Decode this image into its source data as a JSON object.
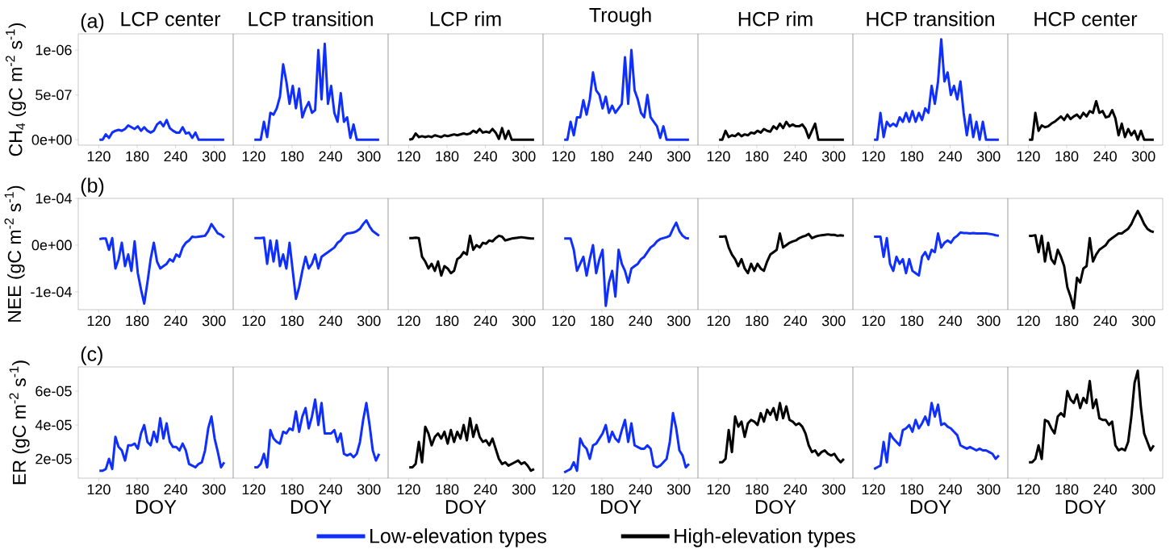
{
  "chart_data": [
    {
      "type": "line",
      "title": "LCP center",
      "ylabel": "CH$_{4}$ (gC m$^{-2}$ s$^{-1}$)",
      "annotations": [
        "(a)"
      ],
      "x": [
        121,
        126,
        131,
        136,
        141,
        146,
        151,
        156,
        161,
        166,
        171,
        176,
        181,
        186,
        191,
        196,
        201,
        206,
        211,
        216,
        221,
        226,
        231,
        236,
        241,
        246,
        251,
        256,
        261,
        266,
        271,
        276,
        281,
        286,
        291,
        296,
        301,
        306,
        311,
        316
      ],
      "xlim": [
        88,
        330
      ],
      "xticks": [
        120,
        180,
        240,
        300
      ],
      "ylim": [
        -6e-08,
        1.18e-06
      ],
      "yticks": [
        {
          "value": 0,
          "label": "0e+00"
        },
        {
          "value": 5e-07,
          "label": "5e-07"
        },
        {
          "value": 1e-06,
          "label": "1e-06"
        }
      ],
      "series": [
        {
          "color": "#0f2fff",
          "values": [
            0,
            0,
            6e-08,
            2e-08,
            8e-08,
            1e-07,
            1.1e-07,
            1e-07,
            1.2e-07,
            1.6e-07,
            1.4e-07,
            1.2e-07,
            1.5e-07,
            1e-07,
            1.4e-07,
            1e-07,
            8e-08,
            1e-07,
            1.7e-07,
            2e-07,
            1.5e-07,
            2.2e-07,
            1.3e-07,
            1e-07,
            8e-08,
            8e-08,
            1.4e-07,
            7e-08,
            8e-08,
            2e-08,
            8e-08,
            0,
            0,
            0,
            0,
            0,
            0,
            0,
            0,
            0
          ]
        }
      ]
    },
    {
      "type": "line",
      "title": "LCP transition",
      "tick_labels": "x",
      "x": [
        121,
        126,
        131,
        136,
        141,
        146,
        151,
        156,
        161,
        166,
        171,
        176,
        181,
        186,
        191,
        196,
        201,
        206,
        211,
        216,
        221,
        226,
        231,
        236,
        241,
        246,
        251,
        256,
        261,
        266,
        271,
        276,
        281,
        286,
        291,
        296,
        301,
        306,
        311,
        316
      ],
      "xlim": [
        88,
        330
      ],
      "xticks": [
        120,
        180,
        240,
        300
      ],
      "ylim": [
        -6e-08,
        1.18e-06
      ],
      "series": [
        {
          "color": "#0f2fff",
          "values": [
            0,
            0,
            0,
            2e-07,
            3e-08,
            3e-07,
            2.8e-07,
            3.5e-07,
            4.8e-07,
            8.4e-07,
            6.5e-07,
            4e-07,
            6e-07,
            3.5e-07,
            5.7e-07,
            2.5e-07,
            3.5e-07,
            4.2e-07,
            3e-07,
            3.3e-07,
            1e-06,
            4.5e-07,
            1.07e-06,
            4e-07,
            6e-07,
            3e-07,
            2e-07,
            5.2e-07,
            2e-07,
            2.5e-07,
            2e-08,
            1.7e-07,
            0,
            0,
            0,
            0,
            0,
            0,
            0,
            0
          ]
        }
      ]
    },
    {
      "type": "line",
      "title": "LCP rim",
      "tick_labels": "x",
      "x": [
        121,
        126,
        131,
        136,
        141,
        146,
        151,
        156,
        161,
        166,
        171,
        176,
        181,
        186,
        191,
        196,
        201,
        206,
        211,
        216,
        221,
        226,
        231,
        236,
        241,
        246,
        251,
        256,
        261,
        266,
        271,
        276,
        281,
        286,
        291,
        296,
        301,
        306,
        311,
        316
      ],
      "xlim": [
        88,
        330
      ],
      "xticks": [
        120,
        180,
        240,
        300
      ],
      "ylim": [
        -6e-08,
        1.18e-06
      ],
      "series": [
        {
          "color": "#000000",
          "values": [
            0,
            1e-08,
            7e-08,
            3e-08,
            4e-08,
            3e-08,
            4e-08,
            3e-08,
            5e-08,
            4e-08,
            3e-08,
            5e-08,
            4e-08,
            5e-08,
            6e-08,
            5e-08,
            6e-08,
            7e-08,
            6e-08,
            7e-08,
            1e-07,
            8e-08,
            1.2e-07,
            8e-08,
            9e-08,
            8e-08,
            1.2e-07,
            8e-08,
            1e-08,
            1.3e-07,
            1e-08,
            1e-07,
            0,
            0,
            0,
            0,
            0,
            0,
            0,
            0
          ]
        }
      ]
    },
    {
      "type": "line",
      "title": "Trough",
      "tick_labels": "x",
      "x": [
        121,
        126,
        131,
        136,
        141,
        146,
        151,
        156,
        161,
        166,
        171,
        176,
        181,
        186,
        191,
        196,
        201,
        206,
        211,
        216,
        221,
        226,
        231,
        236,
        241,
        246,
        251,
        256,
        261,
        266,
        271,
        276,
        281,
        286,
        291,
        296,
        301,
        306,
        311,
        316
      ],
      "xlim": [
        88,
        330
      ],
      "xticks": [
        120,
        180,
        240,
        300
      ],
      "ylim": [
        -6e-08,
        1.18e-06
      ],
      "series": [
        {
          "color": "#0f2fff",
          "values": [
            0,
            0,
            2e-07,
            5e-08,
            2.5e-07,
            2.5e-07,
            4.4e-07,
            2.8e-07,
            4.5e-07,
            7.5e-07,
            5.5e-07,
            5e-07,
            3.5e-07,
            4.8e-07,
            3e-07,
            3.8e-07,
            3e-07,
            3.5e-07,
            4e-07,
            9.2e-07,
            4e-07,
            1e-06,
            5.5e-07,
            4.5e-07,
            3e-07,
            2.5e-07,
            5e-07,
            2.5e-07,
            2e-07,
            1.5e-07,
            2e-08,
            1.5e-07,
            0,
            0,
            0,
            0,
            0,
            0,
            0,
            0
          ]
        }
      ]
    },
    {
      "type": "line",
      "title": "HCP rim",
      "tick_labels": "x",
      "x": [
        121,
        126,
        131,
        136,
        141,
        146,
        151,
        156,
        161,
        166,
        171,
        176,
        181,
        186,
        191,
        196,
        201,
        206,
        211,
        216,
        221,
        226,
        231,
        236,
        241,
        246,
        251,
        256,
        261,
        266,
        271,
        276,
        281,
        286,
        291,
        296,
        301,
        306,
        311,
        316
      ],
      "xlim": [
        88,
        330
      ],
      "xticks": [
        120,
        180,
        240,
        300
      ],
      "ylim": [
        -6e-08,
        1.18e-06
      ],
      "series": [
        {
          "color": "#000000",
          "values": [
            0,
            0,
            1e-07,
            3e-08,
            5e-08,
            4e-08,
            7e-08,
            4e-08,
            6e-08,
            5e-08,
            8e-08,
            7e-08,
            1e-07,
            8e-08,
            1.2e-07,
            1e-07,
            9e-08,
            1.5e-07,
            1.2e-07,
            1.8e-07,
            1.3e-07,
            2e-07,
            1.5e-07,
            1.7e-07,
            1.5e-07,
            1.5e-07,
            1.7e-07,
            1.2e-07,
            2e-08,
            1e-07,
            1.8e-07,
            0,
            0,
            0,
            0,
            0,
            0,
            0,
            0,
            0
          ]
        }
      ]
    },
    {
      "type": "line",
      "title": "HCP transition",
      "tick_labels": "x",
      "x": [
        121,
        126,
        131,
        136,
        141,
        146,
        151,
        156,
        161,
        166,
        171,
        176,
        181,
        186,
        191,
        196,
        201,
        206,
        211,
        216,
        221,
        226,
        231,
        236,
        241,
        246,
        251,
        256,
        261,
        266,
        271,
        276,
        281,
        286,
        291,
        296,
        301,
        306,
        311,
        316
      ],
      "xlim": [
        88,
        330
      ],
      "xticks": [
        120,
        180,
        240,
        300
      ],
      "ylim": [
        -6e-08,
        1.18e-06
      ],
      "series": [
        {
          "color": "#0f2fff",
          "values": [
            0,
            0,
            3e-07,
            3e-08,
            2e-07,
            1.5e-07,
            1.8e-07,
            1.5e-07,
            2.5e-07,
            2e-07,
            3e-07,
            2e-07,
            3.2e-07,
            2e-07,
            3e-07,
            2.2e-07,
            3.5e-07,
            3e-07,
            6e-07,
            4e-07,
            6.5e-07,
            1.12e-06,
            6.5e-07,
            7.5e-07,
            5e-07,
            6e-07,
            4.5e-07,
            6.5e-07,
            3e-07,
            5e-08,
            2.8e-07,
            3e-08,
            2e-07,
            0,
            2e-07,
            0,
            0,
            0,
            0,
            0
          ]
        }
      ]
    },
    {
      "type": "line",
      "title": "HCP center",
      "tick_labels": "x",
      "x": [
        121,
        126,
        131,
        136,
        141,
        146,
        151,
        156,
        161,
        166,
        171,
        176,
        181,
        186,
        191,
        196,
        201,
        206,
        211,
        216,
        221,
        226,
        231,
        236,
        241,
        246,
        251,
        256,
        261,
        266,
        271,
        276,
        281,
        286,
        291,
        296,
        301,
        306,
        311,
        316
      ],
      "xlim": [
        88,
        330
      ],
      "xticks": [
        120,
        180,
        240,
        300
      ],
      "ylim": [
        -6e-08,
        1.18e-06
      ],
      "series": [
        {
          "color": "#000000",
          "values": [
            0,
            0,
            3e-07,
            1e-07,
            1.6e-07,
            1.4e-07,
            1.5e-07,
            1.8e-07,
            2e-07,
            2.3e-07,
            2.6e-07,
            2.2e-07,
            2.8e-07,
            2.3e-07,
            2.6e-07,
            2.8e-07,
            2.4e-07,
            3e-07,
            2.6e-07,
            3.2e-07,
            3e-07,
            4.3e-07,
            3e-07,
            3.2e-07,
            2.5e-07,
            2.6e-07,
            3.3e-07,
            2.4e-07,
            5e-08,
            1.8e-07,
            3e-08,
            1.2e-07,
            5e-08,
            1e-07,
            0,
            1e-07,
            0,
            0,
            0,
            0
          ]
        }
      ]
    },
    {
      "type": "line",
      "ylabel": "NEE (gC m$^{-2}$ s$^{-1}$)",
      "annotations": [
        "(b)"
      ],
      "x": [
        121,
        126,
        131,
        136,
        141,
        146,
        151,
        156,
        161,
        166,
        171,
        176,
        181,
        186,
        191,
        196,
        201,
        206,
        211,
        216,
        221,
        226,
        231,
        236,
        241,
        246,
        251,
        256,
        261,
        266,
        271,
        276,
        281,
        286,
        291,
        296,
        301,
        306,
        311,
        316
      ],
      "xlim": [
        88,
        330
      ],
      "xticks": [
        120,
        180,
        240,
        300
      ],
      "ylim": [
        -0.000138,
        0.0001
      ],
      "yticks": [
        {
          "value": -0.0001,
          "label": "-1e-04"
        },
        {
          "value": 0,
          "label": "0e+00"
        },
        {
          "value": 0.0001,
          "label": "1e-04"
        }
      ],
      "series": [
        {
          "color": "#0f2fff",
          "values": [
            1.3e-05,
            1.4e-05,
            1.4e-05,
            -1e-05,
            1.5e-05,
            -5e-05,
            -3e-05,
            5e-06,
            -4.5e-05,
            -2e-05,
            -5.5e-05,
            8e-06,
            -6e-05,
            -9.5e-05,
            -0.000125,
            -8e-05,
            -3e-05,
            5e-06,
            -3.5e-05,
            -5e-05,
            -4.5e-05,
            -4e-05,
            -3e-05,
            -3.5e-05,
            -2e-05,
            -2.5e-05,
            -5e-06,
            5e-06,
            1e-05,
            1.8e-05,
            1.7e-05,
            1.8e-05,
            1.9e-05,
            2e-05,
            3e-05,
            4.5e-05,
            3.5e-05,
            2.5e-05,
            2.2e-05,
            1.6e-05
          ]
        }
      ]
    },
    {
      "type": "line",
      "tick_labels": "x",
      "x": [
        121,
        126,
        131,
        136,
        141,
        146,
        151,
        156,
        161,
        166,
        171,
        176,
        181,
        186,
        191,
        196,
        201,
        206,
        211,
        216,
        221,
        226,
        231,
        236,
        241,
        246,
        251,
        256,
        261,
        266,
        271,
        276,
        281,
        286,
        291,
        296,
        301,
        306,
        311,
        316
      ],
      "xlim": [
        88,
        330
      ],
      "xticks": [
        120,
        180,
        240,
        300
      ],
      "ylim": [
        -0.000138,
        0.0001
      ],
      "series": [
        {
          "color": "#0f2fff",
          "values": [
            1.5e-05,
            1.5e-05,
            1.5e-05,
            1.6e-05,
            -4e-05,
            1e-05,
            -3.5e-05,
            1e-05,
            -4.5e-05,
            -2e-05,
            -5e-05,
            5e-06,
            -5.5e-05,
            -0.000115,
            -9e-05,
            -5.5e-05,
            -2.5e-05,
            -5e-05,
            -4e-05,
            -2e-05,
            -5e-05,
            -2.5e-05,
            -2e-05,
            -1.5e-05,
            -1e-05,
            -5e-06,
            5e-06,
            1e-05,
            2e-05,
            2.5e-05,
            2.6e-05,
            2.7e-05,
            3e-05,
            3.5e-05,
            4.5e-05,
            5.3e-05,
            4e-05,
            3e-05,
            2.5e-05,
            2e-05
          ]
        }
      ]
    },
    {
      "type": "line",
      "tick_labels": "x",
      "x": [
        121,
        126,
        131,
        136,
        141,
        146,
        151,
        156,
        161,
        166,
        171,
        176,
        181,
        186,
        191,
        196,
        201,
        206,
        211,
        216,
        221,
        226,
        231,
        236,
        241,
        246,
        251,
        256,
        261,
        266,
        271,
        276,
        281,
        286,
        291,
        296,
        301,
        306,
        311,
        316
      ],
      "xlim": [
        88,
        330
      ],
      "xticks": [
        120,
        180,
        240,
        300
      ],
      "ylim": [
        -0.000138,
        0.0001
      ],
      "series": [
        {
          "color": "#000000",
          "values": [
            1.5e-05,
            1.5e-05,
            1.6e-05,
            1.5e-05,
            -2.5e-05,
            -3.5e-05,
            -5e-05,
            -4e-05,
            -5.5e-05,
            -3.5e-05,
            -6.5e-05,
            -4.5e-05,
            -5e-05,
            -6e-05,
            -5.5e-05,
            -3e-05,
            -2.5e-05,
            -1.5e-05,
            -2e-05,
            2e-05,
            -1e-05,
            0,
            -5e-06,
            5e-06,
            3e-06,
            1e-05,
            8e-06,
            1.5e-05,
            2e-05,
            1.8e-05,
            1e-05,
            1.2e-05,
            1.4e-05,
            1.5e-05,
            1.6e-05,
            1.7e-05,
            1.6e-05,
            1.5e-05,
            1.4e-05,
            1.4e-05
          ]
        }
      ]
    },
    {
      "type": "line",
      "tick_labels": "x",
      "x": [
        121,
        126,
        131,
        136,
        141,
        146,
        151,
        156,
        161,
        166,
        171,
        176,
        181,
        186,
        191,
        196,
        201,
        206,
        211,
        216,
        221,
        226,
        231,
        236,
        241,
        246,
        251,
        256,
        261,
        266,
        271,
        276,
        281,
        286,
        291,
        296,
        301,
        306,
        311,
        316
      ],
      "xlim": [
        88,
        330
      ],
      "xticks": [
        120,
        180,
        240,
        300
      ],
      "ylim": [
        -0.000138,
        0.0001
      ],
      "series": [
        {
          "color": "#0f2fff",
          "values": [
            1.4e-05,
            1.4e-05,
            1.4e-05,
            -1e-05,
            -5.5e-05,
            -4e-05,
            -2.5e-05,
            -6.5e-05,
            -3e-05,
            0,
            -6e-05,
            -3e-05,
            -1e-05,
            -0.00013,
            -8e-05,
            -5.5e-05,
            -0.00011,
            -1e-05,
            -4e-05,
            -5.5e-05,
            -8e-05,
            -5e-05,
            -4.5e-05,
            -4e-05,
            -3e-05,
            -2.5e-05,
            -1.5e-05,
            -5e-06,
            0,
            8e-06,
            1.3e-05,
            1.5e-05,
            1.7e-05,
            2e-05,
            3.5e-05,
            4.8e-05,
            3e-05,
            2e-05,
            1.5e-05,
            1.4e-05
          ]
        }
      ]
    },
    {
      "type": "line",
      "tick_labels": "x",
      "x": [
        121,
        126,
        131,
        136,
        141,
        146,
        151,
        156,
        161,
        166,
        171,
        176,
        181,
        186,
        191,
        196,
        201,
        206,
        211,
        216,
        221,
        226,
        231,
        236,
        241,
        246,
        251,
        256,
        261,
        266,
        271,
        276,
        281,
        286,
        291,
        296,
        301,
        306,
        311,
        316
      ],
      "xlim": [
        88,
        330
      ],
      "xticks": [
        120,
        180,
        240,
        300
      ],
      "ylim": [
        -0.000138,
        0.0001
      ],
      "series": [
        {
          "color": "#000000",
          "values": [
            1.8e-05,
            1.8e-05,
            1.9e-05,
            -5e-06,
            -2e-05,
            -3e-05,
            -4.5e-05,
            -3e-05,
            -5e-05,
            -6e-05,
            -4e-05,
            -5.5e-05,
            -4e-05,
            -5e-05,
            -5.5e-05,
            -3.5e-05,
            -2e-05,
            -1.5e-05,
            -1e-05,
            2.5e-05,
            -5e-06,
            0,
            5e-06,
            8e-06,
            1e-05,
            1.5e-05,
            1.8e-05,
            2e-05,
            2.4e-05,
            1.5e-05,
            1.8e-05,
            2e-05,
            2.1e-05,
            2.2e-05,
            2.3e-05,
            2.2e-05,
            2.2e-05,
            2e-05,
            2.1e-05,
            2e-05
          ]
        }
      ]
    },
    {
      "type": "line",
      "tick_labels": "x",
      "x": [
        121,
        126,
        131,
        136,
        141,
        146,
        151,
        156,
        161,
        166,
        171,
        176,
        181,
        186,
        191,
        196,
        201,
        206,
        211,
        216,
        221,
        226,
        231,
        236,
        241,
        246,
        251,
        256,
        261,
        266,
        271,
        276,
        281,
        286,
        291,
        296,
        301,
        306,
        311,
        316
      ],
      "xlim": [
        88,
        330
      ],
      "xticks": [
        120,
        180,
        240,
        300
      ],
      "ylim": [
        -0.000138,
        0.0001
      ],
      "series": [
        {
          "color": "#0f2fff",
          "values": [
            1.8e-05,
            1.8e-05,
            1.8e-05,
            -2.5e-05,
            1.5e-05,
            -4e-05,
            -5.5e-05,
            -2.5e-05,
            -4e-05,
            -3e-05,
            -6e-05,
            -3e-05,
            -5.5e-05,
            -6e-05,
            -6.5e-05,
            -2.5e-05,
            -1.5e-05,
            -3e-05,
            -1e-05,
            -1.5e-05,
            2.5e-05,
            -5e-06,
            5e-06,
            1e-05,
            5e-06,
            1.5e-05,
            2e-05,
            2.7e-05,
            2.6e-05,
            2.6e-05,
            2.5e-05,
            2.6e-05,
            2.5e-05,
            2.5e-05,
            2.5e-05,
            2.5e-05,
            2.4e-05,
            2.3e-05,
            2.1e-05,
            2e-05
          ]
        }
      ]
    },
    {
      "type": "line",
      "tick_labels": "x",
      "x": [
        121,
        126,
        131,
        136,
        141,
        146,
        151,
        156,
        161,
        166,
        171,
        176,
        181,
        186,
        191,
        196,
        201,
        206,
        211,
        216,
        221,
        226,
        231,
        236,
        241,
        246,
        251,
        256,
        261,
        266,
        271,
        276,
        281,
        286,
        291,
        296,
        301,
        306,
        311,
        316
      ],
      "xlim": [
        88,
        330
      ],
      "xticks": [
        120,
        180,
        240,
        300
      ],
      "ylim": [
        -0.000138,
        0.0001
      ],
      "series": [
        {
          "color": "#000000",
          "values": [
            2e-05,
            2e-05,
            2.1e-05,
            -1.5e-05,
            2e-05,
            -3.5e-05,
            5e-06,
            -3e-05,
            -4e-05,
            -1e-05,
            -2.5e-05,
            -4.5e-05,
            -9e-05,
            -0.00011,
            -0.000135,
            -7e-05,
            -8e-05,
            -5e-05,
            -4.5e-05,
            1.5e-05,
            -3.5e-05,
            -2e-05,
            -1e-05,
            -5e-06,
            0,
            1e-05,
            1.5e-05,
            2e-05,
            2.5e-05,
            2.5e-05,
            3e-05,
            3.5e-05,
            4.5e-05,
            6e-05,
            7.3e-05,
            6e-05,
            4.5e-05,
            3.5e-05,
            3e-05,
            2.8e-05
          ]
        }
      ]
    },
    {
      "type": "line",
      "xlabel": "DOY",
      "ylabel": "ER (gC m$^{-2}$ s$^{-1}$)",
      "annotations": [
        "(c)"
      ],
      "legend": "bottom",
      "x": [
        121,
        126,
        131,
        136,
        141,
        146,
        151,
        156,
        161,
        166,
        171,
        176,
        181,
        186,
        191,
        196,
        201,
        206,
        211,
        216,
        221,
        226,
        231,
        236,
        241,
        246,
        251,
        256,
        261,
        266,
        271,
        276,
        281,
        286,
        291,
        296,
        301,
        306,
        311,
        316
      ],
      "xlim": [
        88,
        330
      ],
      "xticks": [
        120,
        180,
        240,
        300
      ],
      "ylim": [
        8.6e-06,
        7.43e-05
      ],
      "yticks": [
        {
          "value": 2e-05,
          "label": "2e-05"
        },
        {
          "value": 4e-05,
          "label": "4e-05"
        },
        {
          "value": 6e-05,
          "label": "6e-05"
        }
      ],
      "series": [
        {
          "name": "Low-elevation types",
          "color": "#0f2fff",
          "values": [
            1.3e-05,
            1.3e-05,
            1.4e-05,
            2e-05,
            1.4e-05,
            3.3e-05,
            2.7e-05,
            2.5e-05,
            1.9e-05,
            2.8e-05,
            2.8e-05,
            2.9e-05,
            2.6e-05,
            3.5e-05,
            4e-05,
            3e-05,
            2.8e-05,
            3.6e-05,
            3e-05,
            4.4e-05,
            3.2e-05,
            4.1e-05,
            3e-05,
            2.7e-05,
            2.7e-05,
            2.5e-05,
            2.9e-05,
            2.5e-05,
            1.7e-05,
            1.6e-05,
            1.5e-05,
            1.7e-05,
            1.8e-05,
            2.5e-05,
            3.8e-05,
            4.5e-05,
            3.2e-05,
            2.4e-05,
            1.5e-05,
            1.8e-05
          ]
        }
      ]
    },
    {
      "type": "line",
      "xlabel": "DOY",
      "tick_labels": "x",
      "x": [
        121,
        126,
        131,
        136,
        141,
        146,
        151,
        156,
        161,
        166,
        171,
        176,
        181,
        186,
        191,
        196,
        201,
        206,
        211,
        216,
        221,
        226,
        231,
        236,
        241,
        246,
        251,
        256,
        261,
        266,
        271,
        276,
        281,
        286,
        291,
        296,
        301,
        306,
        311,
        316
      ],
      "xlim": [
        88,
        330
      ],
      "xticks": [
        120,
        180,
        240,
        300
      ],
      "ylim": [
        8.6e-06,
        7.43e-05
      ],
      "series": [
        {
          "color": "#0f2fff",
          "values": [
            1.5e-05,
            1.5e-05,
            1.7e-05,
            2.3e-05,
            1.5e-05,
            3.7e-05,
            3.2e-05,
            3e-05,
            2.9e-05,
            3.6e-05,
            3.5e-05,
            3.8e-05,
            3.7e-05,
            4.8e-05,
            3.6e-05,
            4.5e-05,
            5e-05,
            3.8e-05,
            4.5e-05,
            5.5e-05,
            4e-05,
            5.3e-05,
            3.5e-05,
            3.5e-05,
            3.5e-05,
            3.7e-05,
            3e-05,
            3.5e-05,
            2.3e-05,
            2.2e-05,
            2.3e-05,
            2.1e-05,
            2.3e-05,
            3e-05,
            4.3e-05,
            5.3e-05,
            4e-05,
            2.5e-05,
            1.9e-05,
            2.3e-05
          ]
        }
      ]
    },
    {
      "type": "line",
      "xlabel": "DOY",
      "tick_labels": "x",
      "legend": "bottom",
      "x": [
        121,
        126,
        131,
        136,
        141,
        146,
        151,
        156,
        161,
        166,
        171,
        176,
        181,
        186,
        191,
        196,
        201,
        206,
        211,
        216,
        221,
        226,
        231,
        236,
        241,
        246,
        251,
        256,
        261,
        266,
        271,
        276,
        281,
        286,
        291,
        296,
        301,
        306,
        311,
        316
      ],
      "xlim": [
        88,
        330
      ],
      "xticks": [
        120,
        180,
        240,
        300
      ],
      "ylim": [
        8.6e-06,
        7.43e-05
      ],
      "series": [
        {
          "name": "High-elevation types",
          "color": "#000000",
          "values": [
            1.5e-05,
            1.5e-05,
            1.7e-05,
            3e-05,
            1.8e-05,
            3.9e-05,
            3.5e-05,
            2.8e-05,
            3.3e-05,
            3.5e-05,
            3.2e-05,
            3.6e-05,
            2.9e-05,
            3.7e-05,
            3e-05,
            3.6e-05,
            3.2e-05,
            4e-05,
            3.1e-05,
            4.4e-05,
            3.3e-05,
            4e-05,
            3.3e-05,
            3e-05,
            3.1e-05,
            2.8e-05,
            3.2e-05,
            2.6e-05,
            2e-05,
            1.7e-05,
            1.8e-05,
            1.6e-05,
            1.7e-05,
            1.8e-05,
            1.9e-05,
            1.7e-05,
            1.8e-05,
            1.6e-05,
            1.3e-05,
            1.4e-05
          ]
        }
      ]
    },
    {
      "type": "line",
      "xlabel": "DOY",
      "tick_labels": "x",
      "x": [
        121,
        126,
        131,
        136,
        141,
        146,
        151,
        156,
        161,
        166,
        171,
        176,
        181,
        186,
        191,
        196,
        201,
        206,
        211,
        216,
        221,
        226,
        231,
        236,
        241,
        246,
        251,
        256,
        261,
        266,
        271,
        276,
        281,
        286,
        291,
        296,
        301,
        306,
        311,
        316
      ],
      "xlim": [
        88,
        330
      ],
      "xticks": [
        120,
        180,
        240,
        300
      ],
      "ylim": [
        8.6e-06,
        7.43e-05
      ],
      "series": [
        {
          "color": "#0f2fff",
          "values": [
            1.2e-05,
            1.3e-05,
            1.4e-05,
            1.8e-05,
            1.3e-05,
            3.2e-05,
            2.8e-05,
            2.6e-05,
            2e-05,
            2.8e-05,
            2.9e-05,
            3.2e-05,
            3.5e-05,
            4e-05,
            3e-05,
            3.6e-05,
            3.2e-05,
            3e-05,
            3.7e-05,
            4.3e-05,
            3e-05,
            4.1e-05,
            2.8e-05,
            2.7e-05,
            2.6e-05,
            2.6e-05,
            2.8e-05,
            2.6e-05,
            1.6e-05,
            1.5e-05,
            1.6e-05,
            1.8e-05,
            2e-05,
            3e-05,
            4.7e-05,
            3.8e-05,
            2.5e-05,
            2.2e-05,
            1.5e-05,
            1.7e-05
          ]
        }
      ]
    },
    {
      "type": "line",
      "xlabel": "DOY",
      "tick_labels": "x",
      "x": [
        121,
        126,
        131,
        136,
        141,
        146,
        151,
        156,
        161,
        166,
        171,
        176,
        181,
        186,
        191,
        196,
        201,
        206,
        211,
        216,
        221,
        226,
        231,
        236,
        241,
        246,
        251,
        256,
        261,
        266,
        271,
        276,
        281,
        286,
        291,
        296,
        301,
        306,
        311,
        316
      ],
      "xlim": [
        88,
        330
      ],
      "xticks": [
        120,
        180,
        240,
        300
      ],
      "ylim": [
        8.6e-06,
        7.43e-05
      ],
      "series": [
        {
          "color": "#000000",
          "values": [
            1.8e-05,
            1.8e-05,
            2e-05,
            3.7e-05,
            2.4e-05,
            4.5e-05,
            3.9e-05,
            4.2e-05,
            3.3e-05,
            4.1e-05,
            4.3e-05,
            4.2e-05,
            4e-05,
            4.7e-05,
            4.2e-05,
            4.9e-05,
            4.6e-05,
            5e-05,
            4.3e-05,
            5.3e-05,
            4.4e-05,
            5.1e-05,
            4.3e-05,
            4.2e-05,
            4e-05,
            4.1e-05,
            3.9e-05,
            3.5e-05,
            2.8e-05,
            2.4e-05,
            2.5e-05,
            2.2e-05,
            2.4e-05,
            2.5e-05,
            2.3e-05,
            2.2e-05,
            2.3e-05,
            2e-05,
            1.8e-05,
            2e-05
          ]
        }
      ]
    },
    {
      "type": "line",
      "xlabel": "DOY",
      "tick_labels": "x",
      "x": [
        121,
        126,
        131,
        136,
        141,
        146,
        151,
        156,
        161,
        166,
        171,
        176,
        181,
        186,
        191,
        196,
        201,
        206,
        211,
        216,
        221,
        226,
        231,
        236,
        241,
        246,
        251,
        256,
        261,
        266,
        271,
        276,
        281,
        286,
        291,
        296,
        301,
        306,
        311,
        316
      ],
      "xlim": [
        88,
        330
      ],
      "xticks": [
        120,
        180,
        240,
        300
      ],
      "ylim": [
        8.6e-06,
        7.43e-05
      ],
      "series": [
        {
          "color": "#0f2fff",
          "values": [
            1.4e-05,
            1.5e-05,
            1.6e-05,
            3e-05,
            1.8e-05,
            3.5e-05,
            3.2e-05,
            3e-05,
            2.8e-05,
            3.7e-05,
            3.8e-05,
            4e-05,
            3.6e-05,
            4.3e-05,
            3.8e-05,
            4.1e-05,
            4.5e-05,
            4e-05,
            5.3e-05,
            4.5e-05,
            5.2e-05,
            4e-05,
            4.1e-05,
            3.9e-05,
            3.8e-05,
            3.6e-05,
            3.4e-05,
            2.8e-05,
            2.7e-05,
            2.6e-05,
            2.7e-05,
            2.6e-05,
            2.5e-05,
            2.6e-05,
            2.5e-05,
            2.5e-05,
            2.4e-05,
            2.3e-05,
            2e-05,
            2.2e-05
          ]
        }
      ]
    },
    {
      "type": "line",
      "xlabel": "DOY",
      "tick_labels": "x",
      "x": [
        121,
        126,
        131,
        136,
        141,
        146,
        151,
        156,
        161,
        166,
        171,
        176,
        181,
        186,
        191,
        196,
        201,
        206,
        211,
        216,
        221,
        226,
        231,
        236,
        241,
        246,
        251,
        256,
        261,
        266,
        271,
        276,
        281,
        286,
        291,
        296,
        301,
        306,
        311,
        316
      ],
      "xlim": [
        88,
        330
      ],
      "xticks": [
        120,
        180,
        240,
        300
      ],
      "ylim": [
        8.6e-06,
        7.43e-05
      ],
      "series": [
        {
          "color": "#000000",
          "values": [
            1.8e-05,
            1.8e-05,
            2e-05,
            2.8e-05,
            2e-05,
            4.3e-05,
            4.2e-05,
            3.8e-05,
            3.5e-05,
            4.5e-05,
            4.7e-05,
            4.5e-05,
            6e-05,
            5.5e-05,
            5.3e-05,
            5.8e-05,
            5e-05,
            5.6e-05,
            5.3e-05,
            6.6e-05,
            5e-05,
            5.5e-05,
            4.4e-05,
            4.3e-05,
            4.3e-05,
            4e-05,
            4.2e-05,
            2.8e-05,
            2.5e-05,
            2.6e-05,
            2.5e-05,
            3e-05,
            4.5e-05,
            6.5e-05,
            7.2e-05,
            5e-05,
            3.5e-05,
            3e-05,
            2.5e-05,
            2.8e-05
          ]
        }
      ]
    }
  ]
}
